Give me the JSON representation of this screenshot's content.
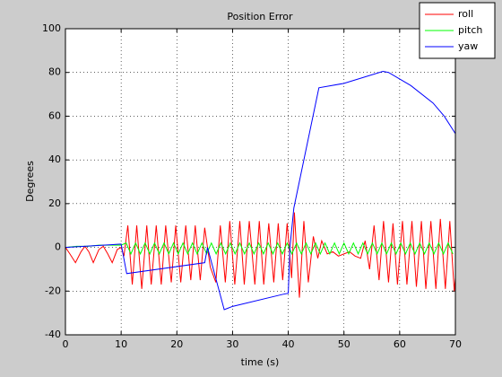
{
  "chart_data": {
    "type": "line",
    "title": "Position Error",
    "xlabel": "time (s)",
    "ylabel": "Degrees",
    "xlim": [
      0,
      70
    ],
    "xticks": [
      0,
      10,
      20,
      30,
      40,
      50,
      60,
      70
    ],
    "ylim": [
      -40,
      100
    ],
    "yticks": [
      -40,
      -20,
      0,
      20,
      40,
      60,
      80,
      100
    ],
    "grid": true,
    "legend": "top-right",
    "series": [
      {
        "name": "roll",
        "color": "#ff0000",
        "x": [
          0,
          0.8,
          1.8,
          2.8,
          3.5,
          4.2,
          5,
          6,
          6.8,
          7.6,
          8.4,
          9.3,
          10,
          10.5,
          11.2,
          12,
          12.8,
          13.7,
          14.6,
          15.4,
          16.3,
          17.2,
          18,
          19,
          19.8,
          20.7,
          21.6,
          22.5,
          23.3,
          24.2,
          25,
          26,
          27,
          27.8,
          28.7,
          29.5,
          30.4,
          31.3,
          32.1,
          33,
          34,
          34.8,
          35.6,
          36.5,
          37.4,
          38.2,
          39,
          39.8,
          40.6,
          41.1,
          42,
          42.8,
          43.6,
          44.5,
          45.3,
          46,
          47,
          48,
          49,
          50,
          51,
          52,
          53,
          53.8,
          54.6,
          55.4,
          56.3,
          57.1,
          58,
          58.8,
          59.6,
          60.5,
          61.3,
          62.2,
          63,
          63.9,
          64.7,
          65.6,
          66.5,
          67.3,
          68.2,
          69,
          69.8,
          70
        ],
        "values": [
          0,
          -3,
          -7,
          -2,
          0.5,
          -2,
          -7,
          -1,
          0.5,
          -3,
          -7,
          -1,
          0,
          -4,
          10,
          -17,
          10,
          -19,
          10,
          -17,
          10,
          -17,
          10,
          -16,
          10,
          -16,
          10,
          -15,
          10,
          -15,
          9,
          -9,
          -16,
          10,
          -16,
          12,
          -17,
          12,
          -17,
          12,
          -17,
          12,
          -17,
          11,
          -16,
          11,
          -15,
          11,
          -14,
          16,
          -23,
          12,
          -16,
          5,
          -5,
          3,
          -3,
          -2,
          -4,
          -3,
          -2,
          -4,
          -5,
          3,
          -10,
          10,
          -15,
          12,
          -16,
          11,
          -17,
          12,
          -17,
          12,
          -18,
          12,
          -19,
          12,
          -19,
          13,
          -19,
          12,
          -20,
          -14
        ]
      },
      {
        "name": "pitch",
        "color": "#00ff00",
        "x": [
          0,
          2,
          4,
          6,
          8,
          10,
          10.9,
          11.75,
          12.6,
          13.45,
          14.3,
          15.15,
          16,
          16.85,
          17.7,
          18.55,
          19.4,
          20.25,
          21.1,
          21.95,
          22.8,
          23.65,
          24.5,
          25.35,
          26.2,
          27.05,
          27.9,
          28.75,
          29.6,
          30.45,
          31.3,
          32.15,
          33,
          33.85,
          34.7,
          35.55,
          36.4,
          37.25,
          38.1,
          38.95,
          39.8,
          40.65,
          41.5,
          42.35,
          43.2,
          44.05,
          44.9,
          45.75,
          46.6,
          47.45,
          48.3,
          49.15,
          50,
          50.85,
          51.7,
          52.55,
          53.4,
          54.25,
          55.1,
          55.95,
          56.8,
          57.65,
          58.5,
          59.35,
          60.2,
          61.05,
          61.9,
          62.75,
          63.6,
          64.45,
          65.3,
          66.15,
          67,
          67.85,
          68.7,
          69.55
        ],
        "values": [
          0,
          0.5,
          0.5,
          1,
          1,
          1,
          2,
          -3,
          2,
          -3,
          2,
          -3,
          2,
          -3,
          2,
          -3,
          2,
          -3,
          2,
          -3,
          2,
          -3,
          2,
          -3,
          2,
          -3,
          2,
          -3,
          2,
          -3,
          2,
          -3,
          2,
          -3,
          2,
          -3,
          2,
          -3,
          2,
          -3,
          2,
          -3,
          2,
          -3,
          2,
          -3,
          2,
          -3,
          2,
          -3,
          2,
          -3,
          2,
          -3,
          2,
          -3,
          2,
          -3,
          2,
          -3,
          2,
          -3,
          2,
          -3,
          2,
          -3,
          2,
          -3,
          2,
          -3,
          2,
          -3,
          2,
          -3,
          2,
          -3
        ]
      },
      {
        "name": "yaw",
        "color": "#0000ff",
        "x": [
          0,
          10,
          11,
          25,
          25.5,
          28.5,
          30,
          39,
          40,
          40.3,
          41,
          45.5,
          50,
          57,
          58,
          62,
          66,
          68,
          70
        ],
        "values": [
          0,
          1.5,
          -12,
          -7,
          0,
          -28.5,
          -27,
          -21.5,
          -21,
          0,
          18,
          73,
          75,
          80.5,
          80,
          74,
          66,
          60,
          52
        ]
      }
    ]
  }
}
